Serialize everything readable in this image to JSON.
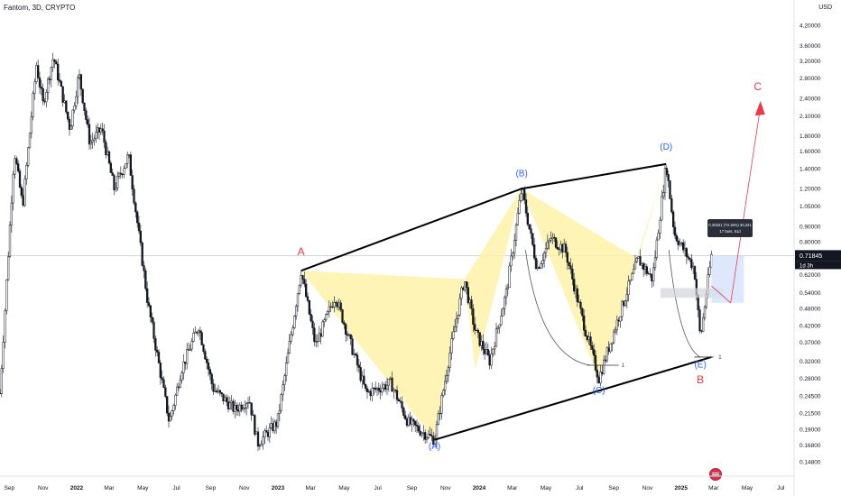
{
  "header": {
    "symbol_label": "Fantom, 3D, CRYPTO",
    "currency": "USD"
  },
  "colors": {
    "candle": "#131722",
    "pattern_fill": "#fdf2a8",
    "trendline": "#000000",
    "label_blue": "#2962ff",
    "label_red": "#f23645",
    "projection": "#f23645",
    "zone": "#d6e2fb",
    "price_tag": "#131722",
    "hline": "#c4c8d0"
  },
  "chart_data": {
    "type": "candlestick",
    "title": "Fantom, 3D, CRYPTO",
    "yaxis_scale": "log",
    "ylim": [
      0.14,
      4.5
    ],
    "y_ticks": [
      "4.20000",
      "3.60000",
      "3.20000",
      "2.80000",
      "2.40000",
      "2.10000",
      "1.80000",
      "1.60000",
      "1.40000",
      "1.20000",
      "1.05000",
      "0.90000",
      "0.80000",
      "0.62000",
      "0.54000",
      "0.48000",
      "0.42000",
      "0.37000",
      "0.32000",
      "0.28000",
      "0.24500",
      "0.21500",
      "0.19000",
      "0.16800",
      "0.14800"
    ],
    "x_ticks": [
      "Sep",
      "Nov",
      "2022",
      "Mar",
      "May",
      "Jul",
      "Sep",
      "Nov",
      "2023",
      "Mar",
      "May",
      "Jul",
      "Sep",
      "Nov",
      "2024",
      "Mar",
      "May",
      "Jul",
      "Sep",
      "Nov",
      "2025",
      "Mar",
      "May",
      "Jul"
    ],
    "x_range": [
      "2021-08-15",
      "2025-07-25"
    ],
    "price_path": [
      [
        "2021-08-15",
        0.25
      ],
      [
        "2021-09-10",
        1.6
      ],
      [
        "2021-09-25",
        1.05
      ],
      [
        "2021-10-20",
        3.1
      ],
      [
        "2021-11-01",
        2.3
      ],
      [
        "2021-11-20",
        3.3
      ],
      [
        "2021-12-20",
        1.9
      ],
      [
        "2022-01-05",
        2.9
      ],
      [
        "2022-01-25",
        1.7
      ],
      [
        "2022-02-15",
        1.9
      ],
      [
        "2022-03-10",
        1.2
      ],
      [
        "2022-04-05",
        1.55
      ],
      [
        "2022-05-10",
        0.5
      ],
      [
        "2022-06-18",
        0.2
      ],
      [
        "2022-07-10",
        0.3
      ],
      [
        "2022-08-10",
        0.42
      ],
      [
        "2022-09-05",
        0.26
      ],
      [
        "2022-10-15",
        0.22
      ],
      [
        "2022-11-10",
        0.24
      ],
      [
        "2022-11-25",
        0.17
      ],
      [
        "2022-12-31",
        0.2
      ],
      [
        "2023-02-12",
        0.64
      ],
      [
        "2023-03-10",
        0.36
      ],
      [
        "2023-04-15",
        0.53
      ],
      [
        "2023-06-10",
        0.25
      ],
      [
        "2023-07-25",
        0.27
      ],
      [
        "2023-08-25",
        0.2
      ],
      [
        "2023-10-12",
        0.175
      ],
      [
        "2023-11-10",
        0.35
      ],
      [
        "2023-12-05",
        0.6
      ],
      [
        "2023-12-25",
        0.4
      ],
      [
        "2024-01-20",
        0.32
      ],
      [
        "2024-02-20",
        0.55
      ],
      [
        "2024-03-18",
        1.2
      ],
      [
        "2024-04-15",
        0.65
      ],
      [
        "2024-05-10",
        0.82
      ],
      [
        "2024-06-05",
        0.75
      ],
      [
        "2024-07-05",
        0.45
      ],
      [
        "2024-08-05",
        0.28
      ],
      [
        "2024-09-10",
        0.45
      ],
      [
        "2024-10-15",
        0.7
      ],
      [
        "2024-11-10",
        0.6
      ],
      [
        "2024-12-05",
        1.45
      ],
      [
        "2024-12-20",
        0.85
      ],
      [
        "2025-01-25",
        0.65
      ],
      [
        "2025-02-05",
        0.38
      ],
      [
        "2025-02-25",
        0.7185
      ]
    ],
    "last_price": "0.71845",
    "last_price_countdown": "1d 3h",
    "tooltip": {
      "line1": "0.30221 (73.15%) 30,221",
      "line2": "17 bars, 51d"
    },
    "wave_labels": [
      {
        "text": "A",
        "date": "2023-02-12",
        "price": 0.72,
        "color": "red"
      },
      {
        "text": "(B)",
        "date": "2024-03-18",
        "price": 1.32,
        "color": "blue"
      },
      {
        "text": "(D)",
        "date": "2024-12-05",
        "price": 1.62,
        "color": "blue"
      },
      {
        "text": "(C)",
        "date": "2024-08-05",
        "price": 0.25,
        "color": "blue"
      },
      {
        "text": "(E)",
        "date": "2025-02-05",
        "price": 0.305,
        "color": "blue"
      },
      {
        "text": "B",
        "date": "2025-02-05",
        "price": 0.27,
        "color": "red"
      },
      {
        "text": "(A)",
        "date": "2023-10-12",
        "price": 0.163,
        "color": "blue"
      },
      {
        "text": "C",
        "date": "2025-05-20",
        "price": 2.55,
        "color": "red"
      }
    ],
    "upper_trendline": [
      [
        "2023-02-12",
        0.64
      ],
      [
        "2024-03-18",
        1.2
      ],
      [
        "2024-12-05",
        1.45
      ]
    ],
    "lower_trendline": [
      [
        "2023-10-12",
        0.175
      ],
      [
        "2025-02-25",
        0.33
      ]
    ],
    "horizontal_line_price": 0.7185,
    "target_count_markers": [
      "1",
      "1"
    ]
  }
}
